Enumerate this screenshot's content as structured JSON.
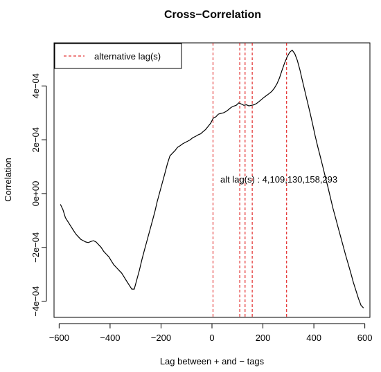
{
  "chart_data": {
    "type": "line",
    "title": "Cross−Correlation",
    "xlabel": "Lag between + and − tags",
    "ylabel": "Correlation",
    "xlim": [
      -620,
      620
    ],
    "ylim": [
      -0.00046,
      0.00056
    ],
    "x_ticks": [
      -600,
      -400,
      -200,
      0,
      200,
      400,
      600
    ],
    "x_tick_labels": [
      "−600",
      "−400",
      "−200",
      "0",
      "200",
      "400",
      "600"
    ],
    "y_ticks": [
      -0.0004,
      -0.0002,
      0,
      0.0002,
      0.0004
    ],
    "y_tick_labels": [
      "−4e−04",
      "−2e−04",
      "0e+00",
      "2e−04",
      "4e−04"
    ],
    "series": [
      {
        "color": "#000000",
        "x": [
          -595,
          -585,
          -575,
          -565,
          -555,
          -545,
          -535,
          -525,
          -515,
          -505,
          -495,
          -485,
          -475,
          -465,
          -455,
          -445,
          -435,
          -425,
          -415,
          -405,
          -395,
          -385,
          -375,
          -365,
          -355,
          -345,
          -335,
          -325,
          -315,
          -305,
          -295,
          -285,
          -275,
          -265,
          -255,
          -245,
          -235,
          -225,
          -215,
          -205,
          -195,
          -185,
          -175,
          -165,
          -155,
          -145,
          -135,
          -125,
          -115,
          -105,
          -95,
          -85,
          -75,
          -65,
          -55,
          -45,
          -35,
          -25,
          -15,
          -5,
          5,
          15,
          25,
          35,
          45,
          55,
          65,
          75,
          85,
          95,
          105,
          115,
          125,
          135,
          145,
          155,
          165,
          175,
          185,
          195,
          205,
          215,
          225,
          235,
          245,
          255,
          265,
          275,
          285,
          295,
          305,
          315,
          325,
          335,
          345,
          355,
          365,
          375,
          385,
          395,
          405,
          415,
          425,
          435,
          445,
          455,
          465,
          475,
          485,
          495,
          505,
          515,
          525,
          535,
          545,
          555,
          565,
          575,
          585,
          595
        ],
        "y": [
          -4e-05,
          -6e-05,
          -9e-05,
          -0.000105,
          -0.00012,
          -0.000135,
          -0.00015,
          -0.00016,
          -0.00017,
          -0.000175,
          -0.00018,
          -0.000182,
          -0.000178,
          -0.000175,
          -0.00018,
          -0.00019,
          -0.0002,
          -0.000215,
          -0.000225,
          -0.000235,
          -0.00025,
          -0.000265,
          -0.000275,
          -0.000285,
          -0.000295,
          -0.00031,
          -0.000325,
          -0.00034,
          -0.000355,
          -0.000355,
          -0.00032,
          -0.000285,
          -0.000245,
          -0.00021,
          -0.000175,
          -0.00014,
          -0.000105,
          -7e-05,
          -3e-05,
          5e-06,
          4e-05,
          7.5e-05,
          0.00011,
          0.00014,
          0.00015,
          0.00016,
          0.000172,
          0.000178,
          0.000185,
          0.00019,
          0.000195,
          0.0002,
          0.000208,
          0.000212,
          0.000218,
          0.000222,
          0.00023,
          0.000238,
          0.00025,
          0.000262,
          0.00028,
          0.000285,
          0.000295,
          0.000298,
          0.0003,
          0.000305,
          0.000312,
          0.00032,
          0.000325,
          0.000328,
          0.000337,
          0.000333,
          0.000328,
          0.00033,
          0.000326,
          0.000328,
          0.00033,
          0.000335,
          0.000342,
          0.00035,
          0.000358,
          0.000365,
          0.000372,
          0.00038,
          0.000392,
          0.000408,
          0.00043,
          0.000458,
          0.000485,
          0.000508,
          0.000525,
          0.000533,
          0.00052,
          0.000495,
          0.00046,
          0.00042,
          0.00038,
          0.00034,
          0.0003,
          0.000258,
          0.000215,
          0.000175,
          0.000138,
          0.0001,
          6.2e-05,
          2.5e-05,
          -1.5e-05,
          -5.5e-05,
          -9e-05,
          -0.000125,
          -0.00016,
          -0.000195,
          -0.00023,
          -0.000262,
          -0.000295,
          -0.00033,
          -0.00036,
          -0.00039,
          -0.000415,
          -0.000425
        ]
      }
    ],
    "vlines": [
      4,
      109,
      130,
      158,
      293
    ],
    "vline_color": "#dd0000",
    "legend": {
      "position": "top-left",
      "entries": [
        "alternative lag(s)"
      ]
    },
    "annotation": "alt lag(s) : 4,109,130,158,293",
    "grid": false
  }
}
